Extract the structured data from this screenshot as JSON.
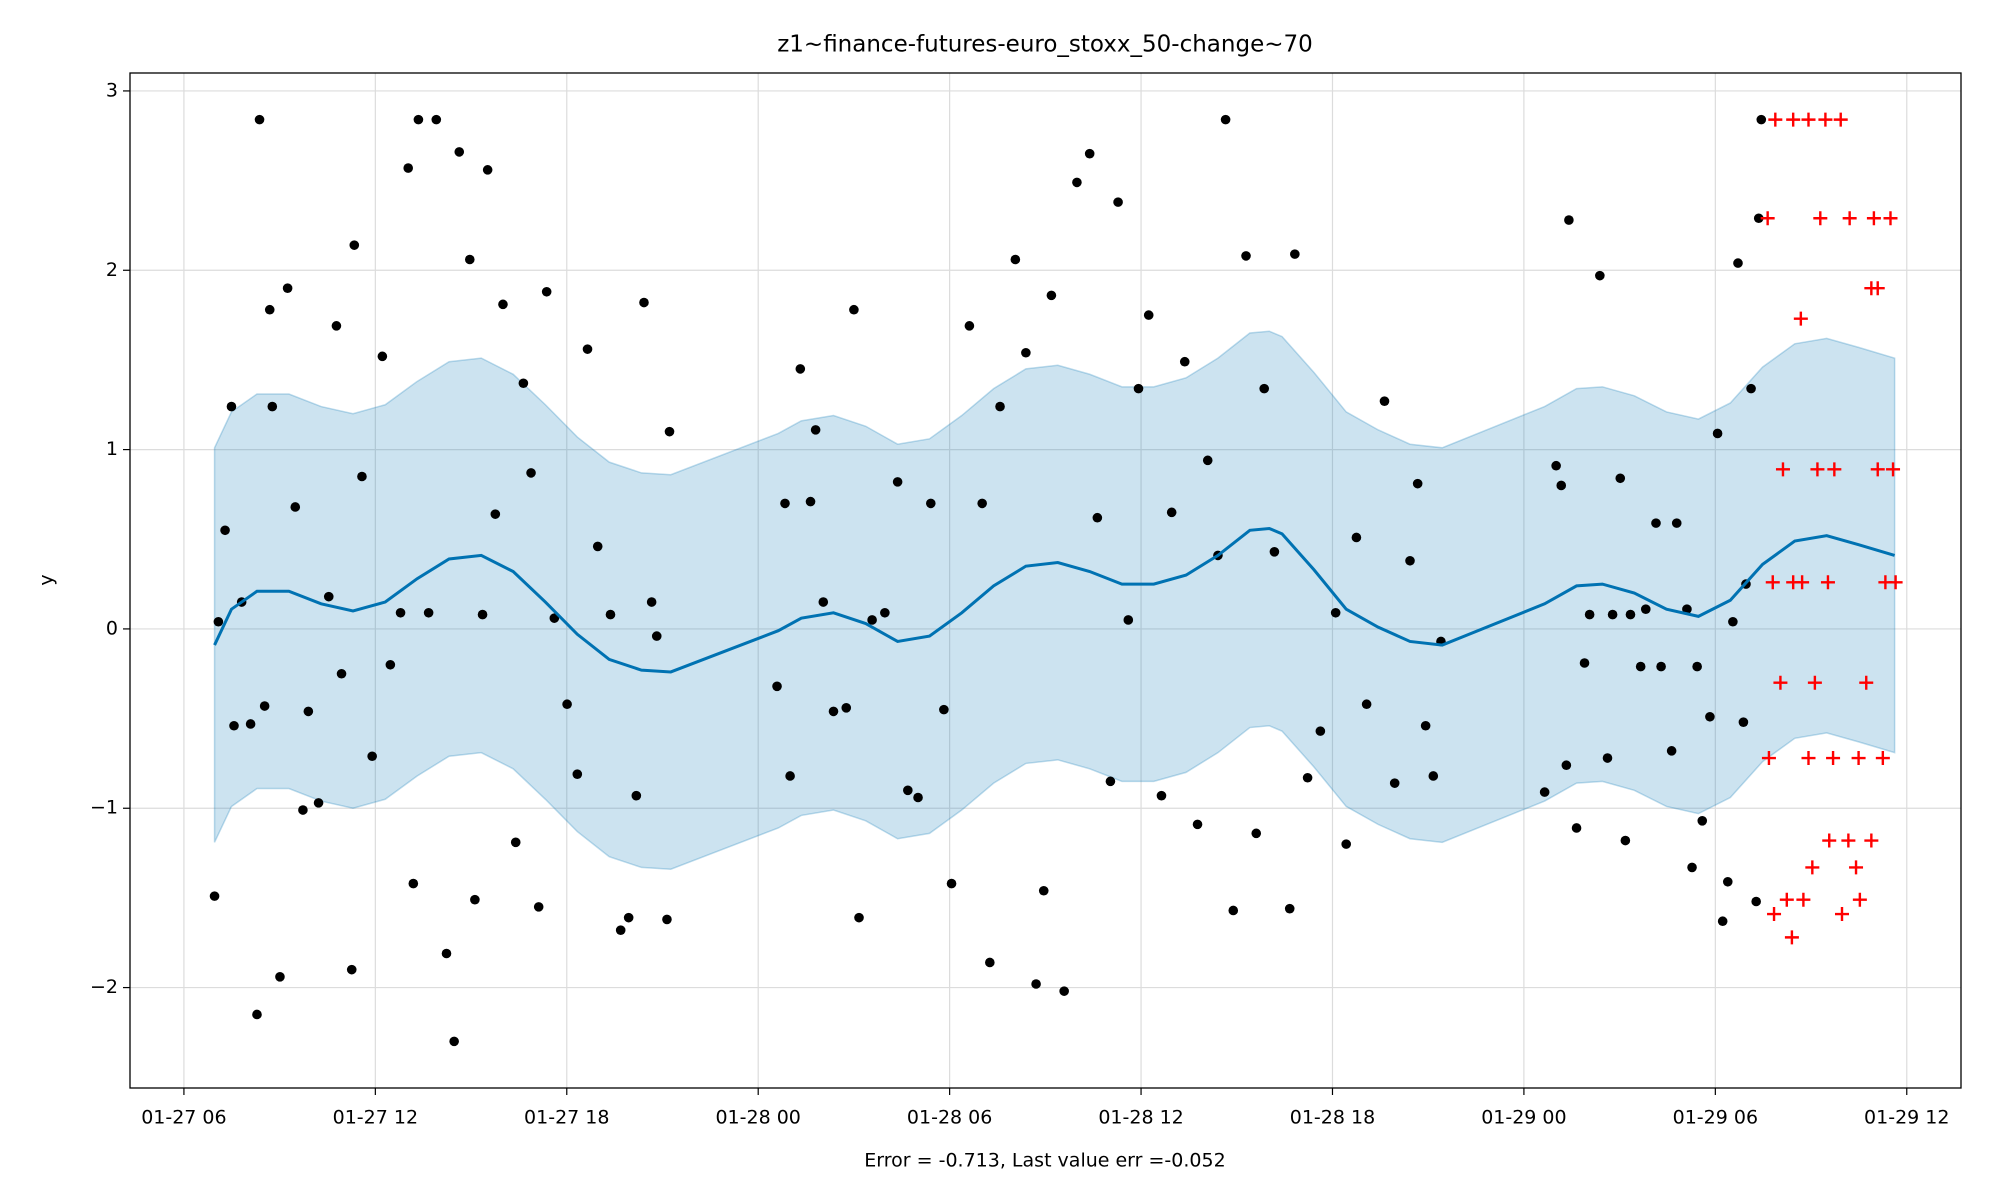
{
  "chart_data": {
    "type": "forecast",
    "title": "z1~finance-futures-euro_stoxx_50-change~70",
    "x_label": "Error = -0.713, Last value err =-0.052",
    "y_label": "y",
    "xlim": [
      4.31,
      61.7
    ],
    "ylim": [
      -2.56,
      3.1
    ],
    "xticks": [
      {
        "value": 6,
        "label": "01-27 06"
      },
      {
        "value": 12,
        "label": "01-27 12"
      },
      {
        "value": 18,
        "label": "01-27 18"
      },
      {
        "value": 24,
        "label": "01-28 00"
      },
      {
        "value": 30,
        "label": "01-28 06"
      },
      {
        "value": 36,
        "label": "01-28 12"
      },
      {
        "value": 42,
        "label": "01-28 18"
      },
      {
        "value": 48,
        "label": "01-29 00"
      },
      {
        "value": 54,
        "label": "01-29 06"
      },
      {
        "value": 60,
        "label": "01-29 12"
      }
    ],
    "yticks": [
      {
        "value": -2,
        "label": "−2"
      },
      {
        "value": -1,
        "label": "−1"
      },
      0,
      1,
      2,
      3
    ],
    "grid": true,
    "band": {
      "color": "#0072b2",
      "x": [
        6.96,
        7.49,
        8.29,
        9.29,
        10.3,
        11.3,
        12.31,
        13.31,
        14.31,
        15.32,
        16.32,
        17.33,
        18.33,
        19.33,
        20.34,
        21.26,
        24.63,
        25.35,
        26.36,
        27.37,
        28.37,
        29.37,
        30.38,
        31.38,
        32.39,
        33.39,
        34.39,
        35.4,
        36.4,
        37.41,
        38.41,
        39.41,
        40.02,
        40.42,
        41.42,
        42.43,
        43.43,
        44.43,
        45.44,
        48.65,
        49.65,
        50.46,
        51.46,
        52.47,
        53.47,
        54.47,
        55.48,
        56.49,
        57.49,
        58.49,
        59.62
      ],
      "upper": [
        1.01,
        1.21,
        1.31,
        1.31,
        1.24,
        1.2,
        1.25,
        1.38,
        1.49,
        1.51,
        1.42,
        1.25,
        1.07,
        0.93,
        0.87,
        0.86,
        1.09,
        1.16,
        1.19,
        1.13,
        1.03,
        1.06,
        1.19,
        1.34,
        1.45,
        1.47,
        1.42,
        1.35,
        1.35,
        1.4,
        1.51,
        1.65,
        1.66,
        1.63,
        1.43,
        1.21,
        1.11,
        1.03,
        1.01,
        1.24,
        1.34,
        1.35,
        1.3,
        1.21,
        1.17,
        1.26,
        1.46,
        1.59,
        1.62,
        1.57,
        1.51
      ],
      "lower": [
        -1.19,
        -0.99,
        -0.89,
        -0.89,
        -0.96,
        -1.0,
        -0.95,
        -0.82,
        -0.71,
        -0.69,
        -0.78,
        -0.95,
        -1.13,
        -1.27,
        -1.33,
        -1.34,
        -1.11,
        -1.04,
        -1.01,
        -1.07,
        -1.17,
        -1.14,
        -1.01,
        -0.86,
        -0.75,
        -0.73,
        -0.78,
        -0.85,
        -0.85,
        -0.8,
        -0.69,
        -0.55,
        -0.54,
        -0.57,
        -0.77,
        -0.99,
        -1.09,
        -1.17,
        -1.19,
        -0.96,
        -0.86,
        -0.85,
        -0.9,
        -0.99,
        -1.03,
        -0.94,
        -0.74,
        -0.61,
        -0.58,
        -0.63,
        -0.69
      ]
    },
    "forecast": {
      "color": "#0072b2",
      "x": [
        6.96,
        7.49,
        8.29,
        9.29,
        10.3,
        11.3,
        12.31,
        13.31,
        14.31,
        15.32,
        16.32,
        17.33,
        18.33,
        19.33,
        20.34,
        21.26,
        24.63,
        25.35,
        26.36,
        27.37,
        28.37,
        29.37,
        30.38,
        31.38,
        32.39,
        33.39,
        34.39,
        35.4,
        36.4,
        37.41,
        38.41,
        39.41,
        40.02,
        40.42,
        41.42,
        42.43,
        43.43,
        44.43,
        45.44,
        48.65,
        49.65,
        50.46,
        51.46,
        52.47,
        53.47,
        54.47,
        55.48,
        56.49,
        57.49,
        58.49,
        59.62
      ],
      "values": [
        -0.09,
        0.11,
        0.21,
        0.21,
        0.14,
        0.1,
        0.15,
        0.28,
        0.39,
        0.41,
        0.32,
        0.15,
        -0.03,
        -0.17,
        -0.23,
        -0.24,
        -0.01,
        0.06,
        0.09,
        0.03,
        -0.07,
        -0.04,
        0.09,
        0.24,
        0.35,
        0.37,
        0.32,
        0.25,
        0.25,
        0.3,
        0.41,
        0.55,
        0.56,
        0.53,
        0.33,
        0.11,
        0.01,
        -0.07,
        -0.09,
        0.14,
        0.24,
        0.25,
        0.2,
        0.11,
        0.07,
        0.16,
        0.36,
        0.49,
        0.52,
        0.47,
        0.41
      ]
    },
    "observed": {
      "color": "#000000",
      "x": [
        6.96,
        7.08,
        7.29,
        7.49,
        7.57,
        7.81,
        8.09,
        8.29,
        8.37,
        8.53,
        8.69,
        8.77,
        9.01,
        9.25,
        9.49,
        9.73,
        9.9,
        10.22,
        10.54,
        10.78,
        10.94,
        11.26,
        11.34,
        11.58,
        11.9,
        12.22,
        12.47,
        12.79,
        13.03,
        13.19,
        13.35,
        13.67,
        13.91,
        14.23,
        14.47,
        14.63,
        14.96,
        15.12,
        15.36,
        15.52,
        15.76,
        16.0,
        16.4,
        16.64,
        16.88,
        17.12,
        17.37,
        17.61,
        18.01,
        18.33,
        18.65,
        18.97,
        19.37,
        19.69,
        19.94,
        20.18,
        20.42,
        20.66,
        20.82,
        21.14,
        21.22,
        24.59,
        24.84,
        25.0,
        25.32,
        25.64,
        25.8,
        26.04,
        26.36,
        26.76,
        27.0,
        27.16,
        27.57,
        27.97,
        28.37,
        28.69,
        29.01,
        29.41,
        29.82,
        30.06,
        30.62,
        31.02,
        31.26,
        31.58,
        32.06,
        32.39,
        32.71,
        32.95,
        33.19,
        33.59,
        33.99,
        34.39,
        34.63,
        35.04,
        35.28,
        35.6,
        35.92,
        36.24,
        36.64,
        36.96,
        37.37,
        37.77,
        38.09,
        38.41,
        38.65,
        38.89,
        39.29,
        39.61,
        39.86,
        40.18,
        40.66,
        40.82,
        41.22,
        41.62,
        42.1,
        42.43,
        42.75,
        43.07,
        43.63,
        43.95,
        44.43,
        44.67,
        44.92,
        45.16,
        45.4,
        48.65,
        49.01,
        49.17,
        49.33,
        49.41,
        49.65,
        49.9,
        50.06,
        50.38,
        50.62,
        50.78,
        51.02,
        51.18,
        51.34,
        51.66,
        51.82,
        52.14,
        52.3,
        52.63,
        52.79,
        53.11,
        53.27,
        53.43,
        53.59,
        53.83,
        54.07,
        54.23,
        54.39,
        54.55,
        54.71,
        54.88,
        54.96,
        55.12,
        55.28,
        55.36,
        55.44
      ],
      "values": [
        -1.49,
        0.04,
        0.55,
        1.24,
        -0.54,
        0.15,
        -0.53,
        -2.15,
        2.84,
        -0.43,
        1.78,
        1.24,
        -1.94,
        1.9,
        0.68,
        -1.01,
        -0.46,
        -0.97,
        0.18,
        1.69,
        -0.25,
        -1.9,
        2.14,
        0.85,
        -0.71,
        1.52,
        -0.2,
        0.09,
        2.57,
        -1.42,
        2.84,
        0.09,
        2.84,
        -1.81,
        -2.3,
        2.66,
        2.06,
        -1.51,
        0.08,
        2.56,
        0.64,
        1.81,
        -1.19,
        1.37,
        0.87,
        -1.55,
        1.88,
        0.06,
        -0.42,
        -0.81,
        1.56,
        0.46,
        0.08,
        -1.68,
        -1.61,
        -0.93,
        1.82,
        0.15,
        -0.04,
        -1.62,
        1.1,
        -0.32,
        0.7,
        -0.82,
        1.45,
        0.71,
        1.11,
        0.15,
        -0.46,
        -0.44,
        1.78,
        -1.61,
        0.05,
        0.09,
        0.82,
        -0.9,
        -0.94,
        0.7,
        -0.45,
        -1.42,
        1.69,
        0.7,
        -1.86,
        1.24,
        2.06,
        1.54,
        -1.98,
        -1.46,
        1.86,
        -2.02,
        2.49,
        2.65,
        0.62,
        -0.85,
        2.38,
        0.05,
        1.34,
        1.75,
        -0.93,
        0.65,
        1.49,
        -1.09,
        0.94,
        0.41,
        2.84,
        -1.57,
        2.08,
        -1.14,
        1.34,
        0.43,
        -1.56,
        2.09,
        -0.83,
        -0.57,
        0.09,
        -1.2,
        0.51,
        -0.42,
        1.27,
        -0.86,
        0.38,
        0.81,
        -0.54,
        -0.82,
        -0.07,
        -0.91,
        0.91,
        0.8,
        -0.76,
        2.28,
        -1.11,
        -0.19,
        0.08,
        1.97,
        -0.72,
        0.08,
        0.84,
        -1.18,
        0.08,
        -0.21,
        0.11,
        0.59,
        -0.21,
        -0.68,
        0.59,
        0.11,
        -1.33,
        -0.21,
        -1.07,
        -0.49,
        1.09,
        -1.63,
        -1.41,
        0.04,
        2.04,
        -0.52,
        0.25,
        1.34,
        -1.52,
        2.29,
        2.84
      ]
    },
    "future": {
      "color": "#ff0000",
      "x": [
        55.88,
        56.44,
        56.92,
        57.45,
        57.93,
        55.64,
        57.29,
        58.21,
        58.97,
        59.49,
        58.89,
        59.09,
        56.68,
        56.12,
        57.2,
        57.73,
        59.09,
        59.57,
        55.8,
        56.44,
        56.72,
        57.53,
        59.33,
        59.65,
        56.04,
        57.12,
        58.73,
        55.68,
        56.92,
        57.69,
        58.49,
        59.25,
        57.57,
        58.17,
        58.89,
        57.04,
        58.41,
        56.24,
        56.76,
        58.53,
        55.84,
        57.97,
        56.4
      ],
      "values": [
        2.84,
        2.84,
        2.84,
        2.84,
        2.84,
        2.29,
        2.29,
        2.29,
        2.29,
        2.29,
        1.9,
        1.9,
        1.73,
        0.89,
        0.89,
        0.89,
        0.89,
        0.89,
        0.26,
        0.26,
        0.26,
        0.26,
        0.26,
        0.26,
        -0.3,
        -0.3,
        -0.3,
        -0.72,
        -0.72,
        -0.72,
        -0.72,
        -0.72,
        -1.18,
        -1.18,
        -1.18,
        -1.33,
        -1.33,
        -1.51,
        -1.51,
        -1.51,
        -1.59,
        -1.59,
        -1.72
      ]
    }
  }
}
